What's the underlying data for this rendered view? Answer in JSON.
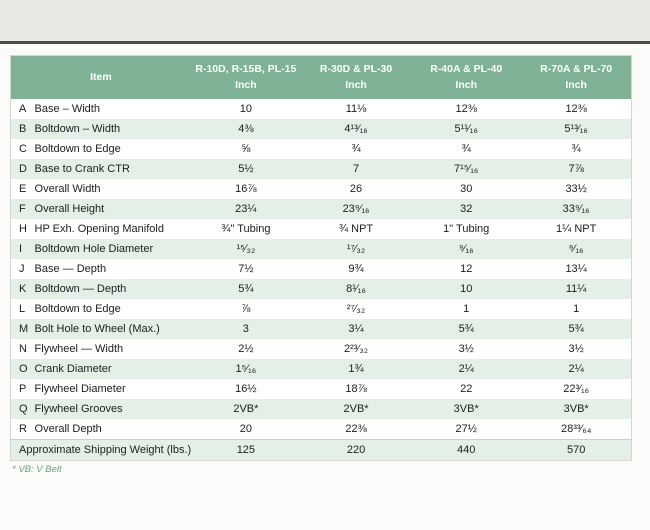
{
  "colors": {
    "header_green": "#7fb295",
    "row_alt_green": "#e4efe7",
    "footnote_green": "#6fa184",
    "top_rule_dark": "#4d4c49",
    "page_strip_gray": "#e9e7e3"
  },
  "table": {
    "item_header": "Item",
    "unit_label": "Inch",
    "columns": [
      "R-10D, R-15B, PL-15",
      "R-30D & PL-30",
      "R-40A & PL-40",
      "R-70A & PL-70"
    ],
    "rows": [
      {
        "letter": "A",
        "item": "Base – Width",
        "values": [
          "10",
          "11⅛",
          "12⅜",
          "12⅜"
        ]
      },
      {
        "letter": "B",
        "item": "Boltdown – Width",
        "values": [
          "4⅜",
          "4¹³⁄₁₆",
          "5¹¹⁄₁₆",
          "5¹³⁄₁₆"
        ]
      },
      {
        "letter": "C",
        "item": "Boltdown to Edge",
        "values": [
          "⅝",
          "¾",
          "¾",
          "¾"
        ]
      },
      {
        "letter": "D",
        "item": "Base to Crank CTR",
        "values": [
          "5½",
          "7",
          "7¹⁵⁄₁₆",
          "7⅞"
        ]
      },
      {
        "letter": "E",
        "item": "Overall Width",
        "values": [
          "16⅞",
          "26",
          "30",
          "33½"
        ]
      },
      {
        "letter": "F",
        "item": "Overall Height",
        "values": [
          "23¼",
          "23⁹⁄₁₆",
          "32",
          "33⁹⁄₁₆"
        ]
      },
      {
        "letter": "H",
        "item": "HP Exh. Opening Manifold",
        "values": [
          "¾\" Tubing",
          "¾ NPT",
          "1\" Tubing",
          "1¼ NPT"
        ]
      },
      {
        "letter": "I",
        "item": "Boltdown Hole Diameter",
        "values": [
          "¹⁵⁄₃₂",
          "¹⁷⁄₃₂",
          "⁹⁄₁₆",
          "⁹⁄₁₆"
        ]
      },
      {
        "letter": "J",
        "item": "Base — Depth",
        "values": [
          "7½",
          "9¾",
          "12",
          "13¼"
        ]
      },
      {
        "letter": "K",
        "item": "Boltdown — Depth",
        "values": [
          "5¾",
          "8¹⁄₁₆",
          "10",
          "11¼"
        ]
      },
      {
        "letter": "L",
        "item": "Boltdown to Edge",
        "values": [
          "⅞",
          "²⁷⁄₃₂",
          "1",
          "1"
        ]
      },
      {
        "letter": "M",
        "item": "Bolt Hole to Wheel (Max.)",
        "values": [
          "3",
          "3¼",
          "5¾",
          "5¾"
        ]
      },
      {
        "letter": "N",
        "item": "Flywheel — Width",
        "values": [
          "2½",
          "2²³⁄₃₂",
          "3½",
          "3½"
        ]
      },
      {
        "letter": "O",
        "item": "Crank Diameter",
        "values": [
          "1⁵⁄₁₆",
          "1¾",
          "2¼",
          "2¼"
        ]
      },
      {
        "letter": "P",
        "item": "Flywheel Diameter",
        "values": [
          "16½",
          "18⅞",
          "22",
          "22³⁄₁₆"
        ]
      },
      {
        "letter": "Q",
        "item": "Flywheel Grooves",
        "values": [
          "2VB*",
          "2VB*",
          "3VB*",
          "3VB*"
        ]
      },
      {
        "letter": "R",
        "item": "Overall Depth",
        "values": [
          "20",
          "22⅜",
          "27½",
          "28³³⁄₆₄"
        ]
      }
    ],
    "footer": {
      "label": "Approximate Shipping Weight (lbs.)",
      "values": [
        "125",
        "220",
        "440",
        "570"
      ]
    }
  },
  "footnote": "* VB: V Belt"
}
